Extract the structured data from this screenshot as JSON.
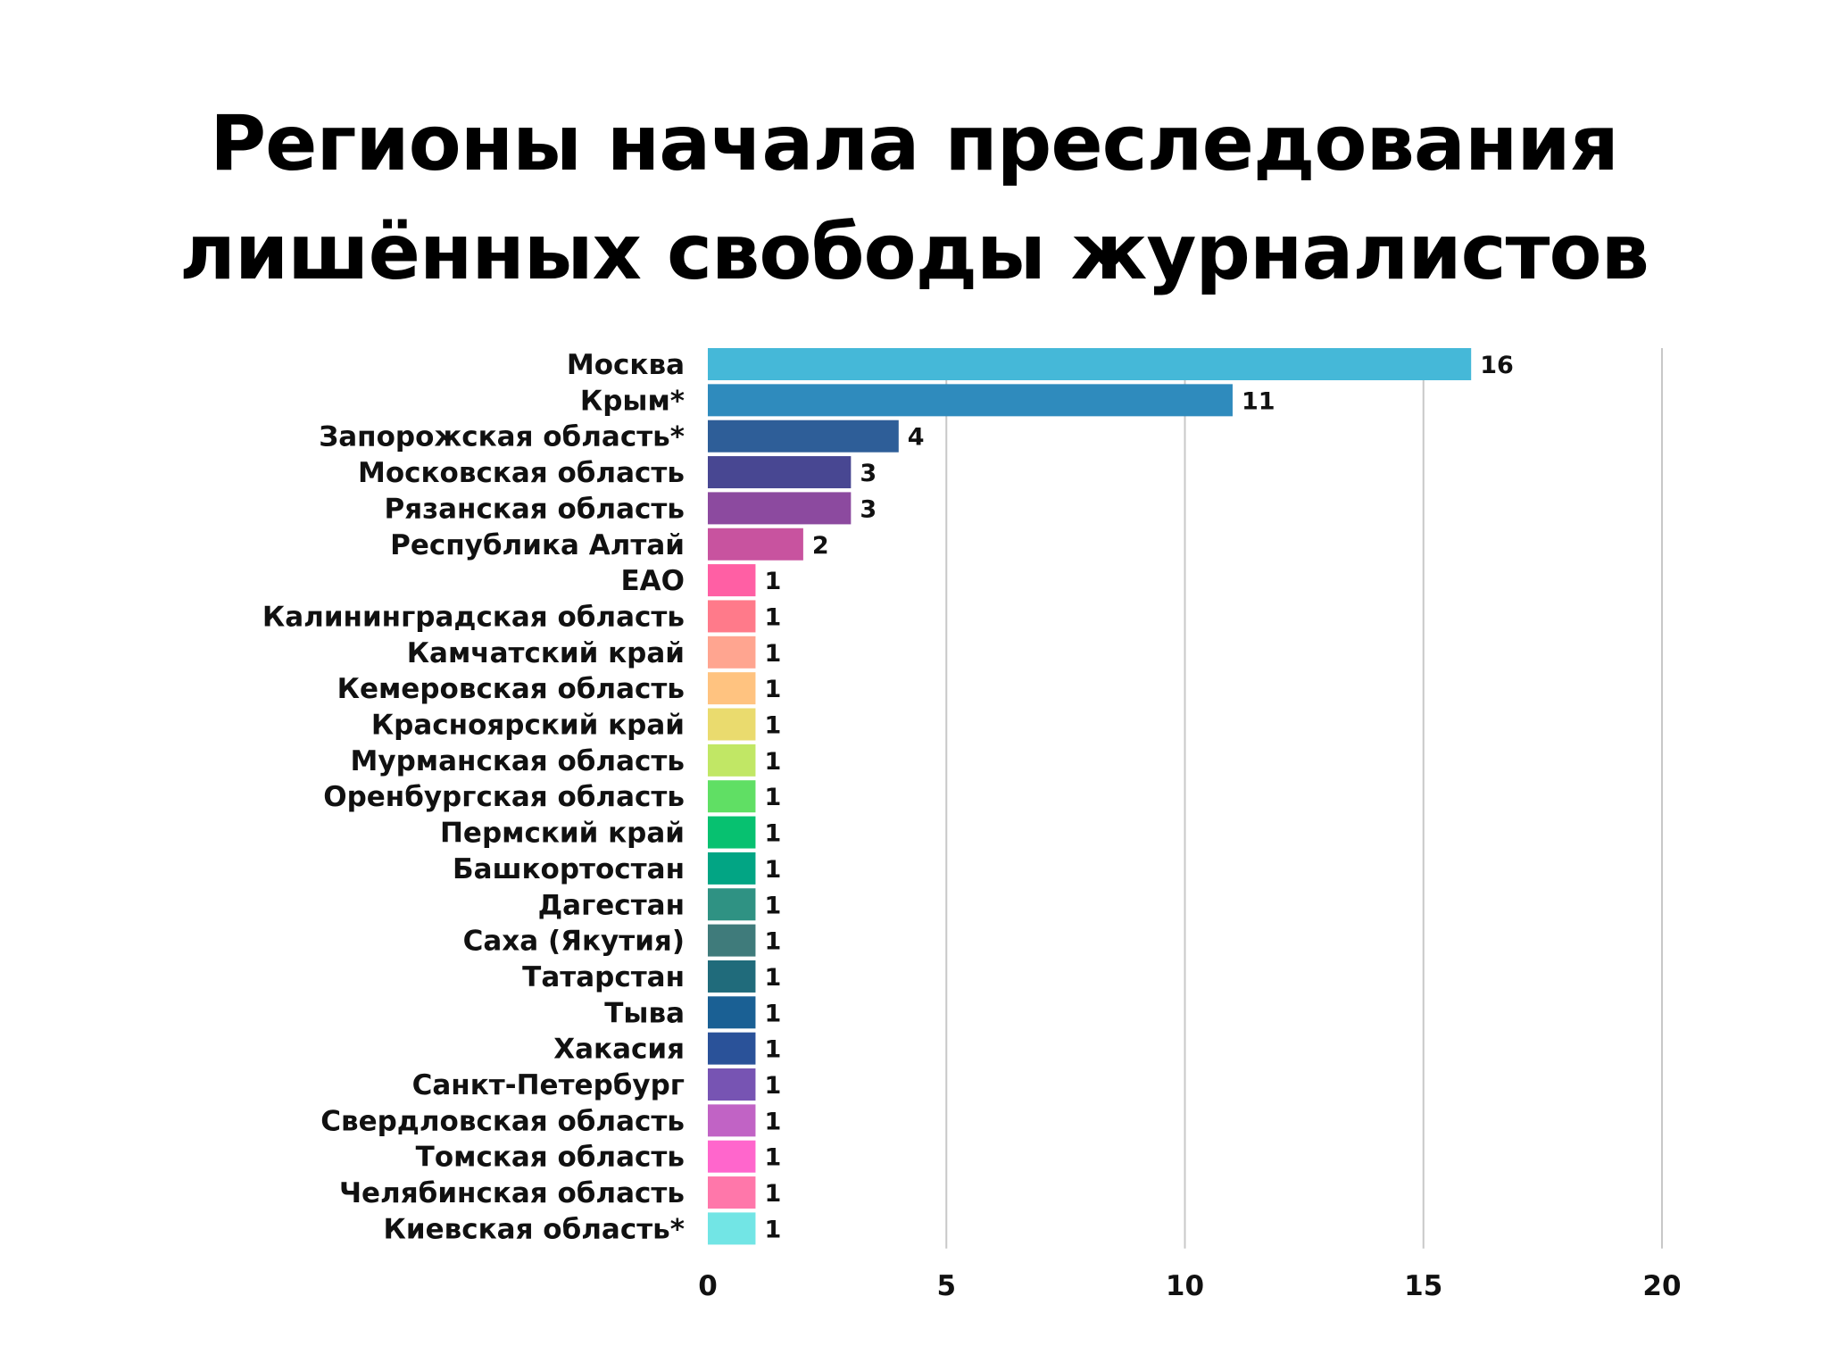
{
  "chart_data": {
    "type": "bar",
    "orientation": "horizontal",
    "title_lines": [
      "Регионы начала преследования",
      "лишённых свободы журналистов"
    ],
    "categories": [
      "Москва",
      "Крым*",
      "Запорожская область*",
      "Московская область",
      "Рязанская область",
      "Республика Алтай",
      "ЕАО",
      "Калининградская область",
      "Камчатский край",
      "Кемеровская область",
      "Красноярский край",
      "Мурманская область",
      "Оренбургская область",
      "Пермский край",
      "Башкортостан",
      "Дагестан",
      "Саха (Якутия)",
      "Татарстан",
      "Тыва",
      "Хакасия",
      "Санкт-Петербург",
      "Свердловская область",
      "Томская область",
      "Челябинская область",
      "Киевская область*"
    ],
    "values": [
      16,
      11,
      4,
      3,
      3,
      2,
      1,
      1,
      1,
      1,
      1,
      1,
      1,
      1,
      1,
      1,
      1,
      1,
      1,
      1,
      1,
      1,
      1,
      1,
      1
    ],
    "colors": [
      "#45b8d8",
      "#2f8bbd",
      "#2e5e98",
      "#484792",
      "#8c4a9f",
      "#c8539f",
      "#ff5fa4",
      "#ff7a8a",
      "#ffa590",
      "#ffc380",
      "#eadb6e",
      "#c1e765",
      "#60df64",
      "#07c170",
      "#02a584",
      "#2f9283",
      "#3f7b7b",
      "#206b7b",
      "#1a6094",
      "#2a5299",
      "#7754b3",
      "#c163c5",
      "#ff66cc",
      "#ff77aa",
      "#72e5e5"
    ],
    "xlim": [
      0,
      20
    ],
    "xticks": [
      "0",
      "5",
      "10",
      "15",
      "20"
    ],
    "grid": true,
    "xlabel": "",
    "ylabel": ""
  }
}
